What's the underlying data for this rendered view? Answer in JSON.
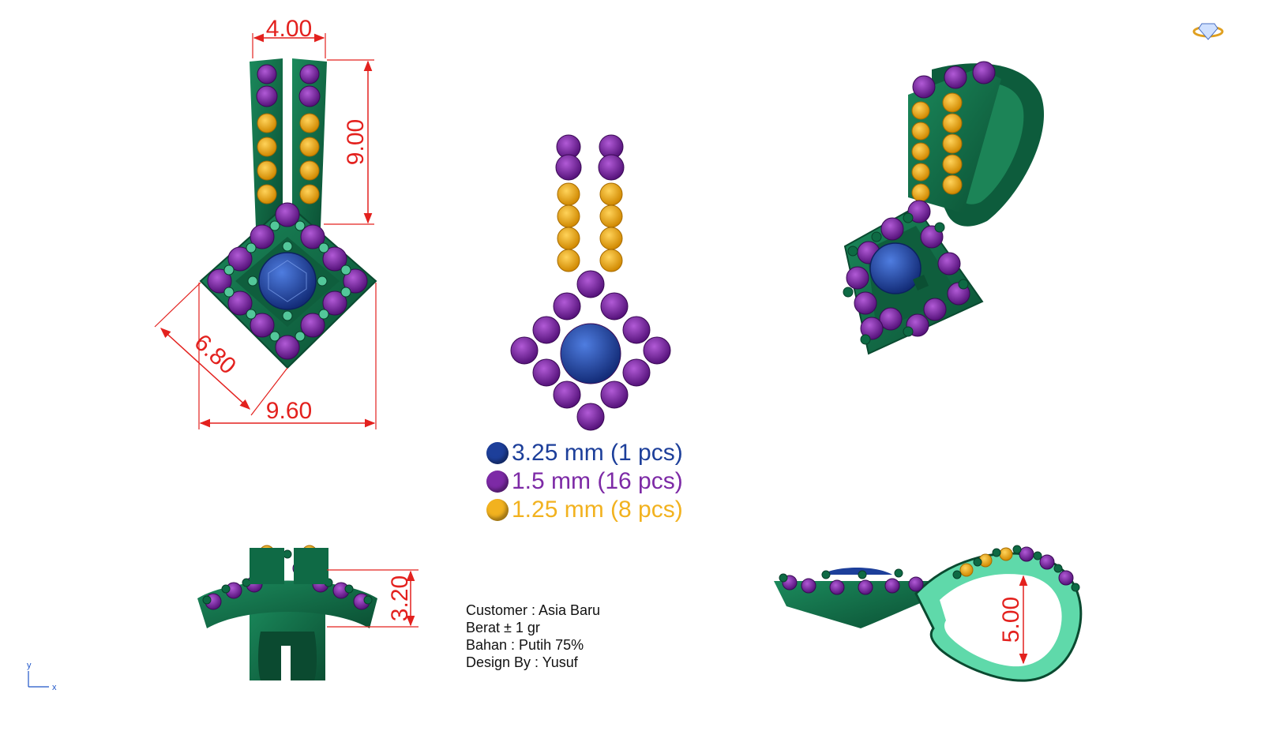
{
  "colors": {
    "metal": "#12704a",
    "metal_dark": "#0a4a30",
    "metal_light": "#5fd9aa",
    "center_stone": "#1d3f9a",
    "side_stone": "#7d2aa6",
    "accent_stone": "#f2b21f",
    "dimension": "#e3211e",
    "axis": "#1f55c8"
  },
  "dimensions": {
    "top_width": "4.00",
    "bail_height": "9.00",
    "side_length": "6.80",
    "total_width": "9.60",
    "thickness": "3.20",
    "bail_opening": "5.00"
  },
  "legend": [
    {
      "label": "3.25 mm (1 pcs)",
      "color": "#1d3f9a"
    },
    {
      "label": "1.5 mm (16 pcs)",
      "color": "#7d2aa6"
    },
    {
      "label": "1.25 mm (8 pcs)",
      "color": "#f2b21f"
    }
  ],
  "info": {
    "customer": "Customer : Asia Baru",
    "weight": "Berat ± 1 gr",
    "material": "Bahan : Putih 75%",
    "designer": "Design By : Yusuf"
  },
  "axes": {
    "y": "y",
    "x": "x"
  },
  "icons": {
    "logo": "diamond-ring-icon"
  }
}
